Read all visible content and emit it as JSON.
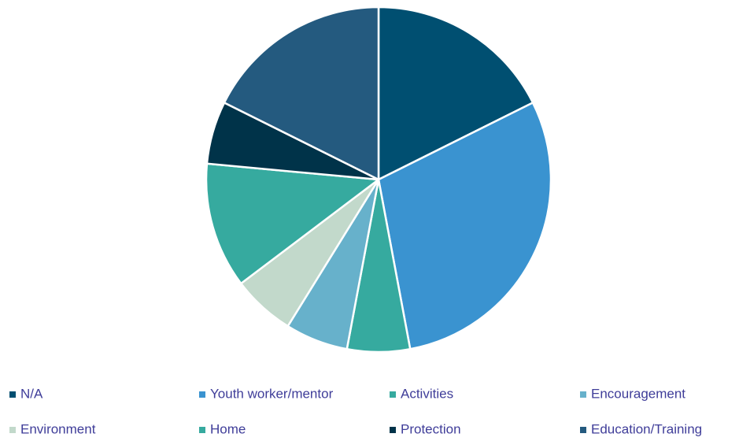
{
  "chart_data": {
    "type": "pie",
    "categories": [
      "N/A",
      "Youth worker/mentor",
      "Activities",
      "Encouragement",
      "Environment",
      "Home",
      "Protection",
      "Education/Training"
    ],
    "values": [
      3,
      5,
      1,
      1,
      1,
      2,
      1,
      3
    ],
    "colors": [
      "#004f71",
      "#3a93d0",
      "#36aa9f",
      "#67b1cb",
      "#c2d9cb",
      "#36aa9f",
      "#003349",
      "#245a7f"
    ],
    "legend": "bottom"
  }
}
